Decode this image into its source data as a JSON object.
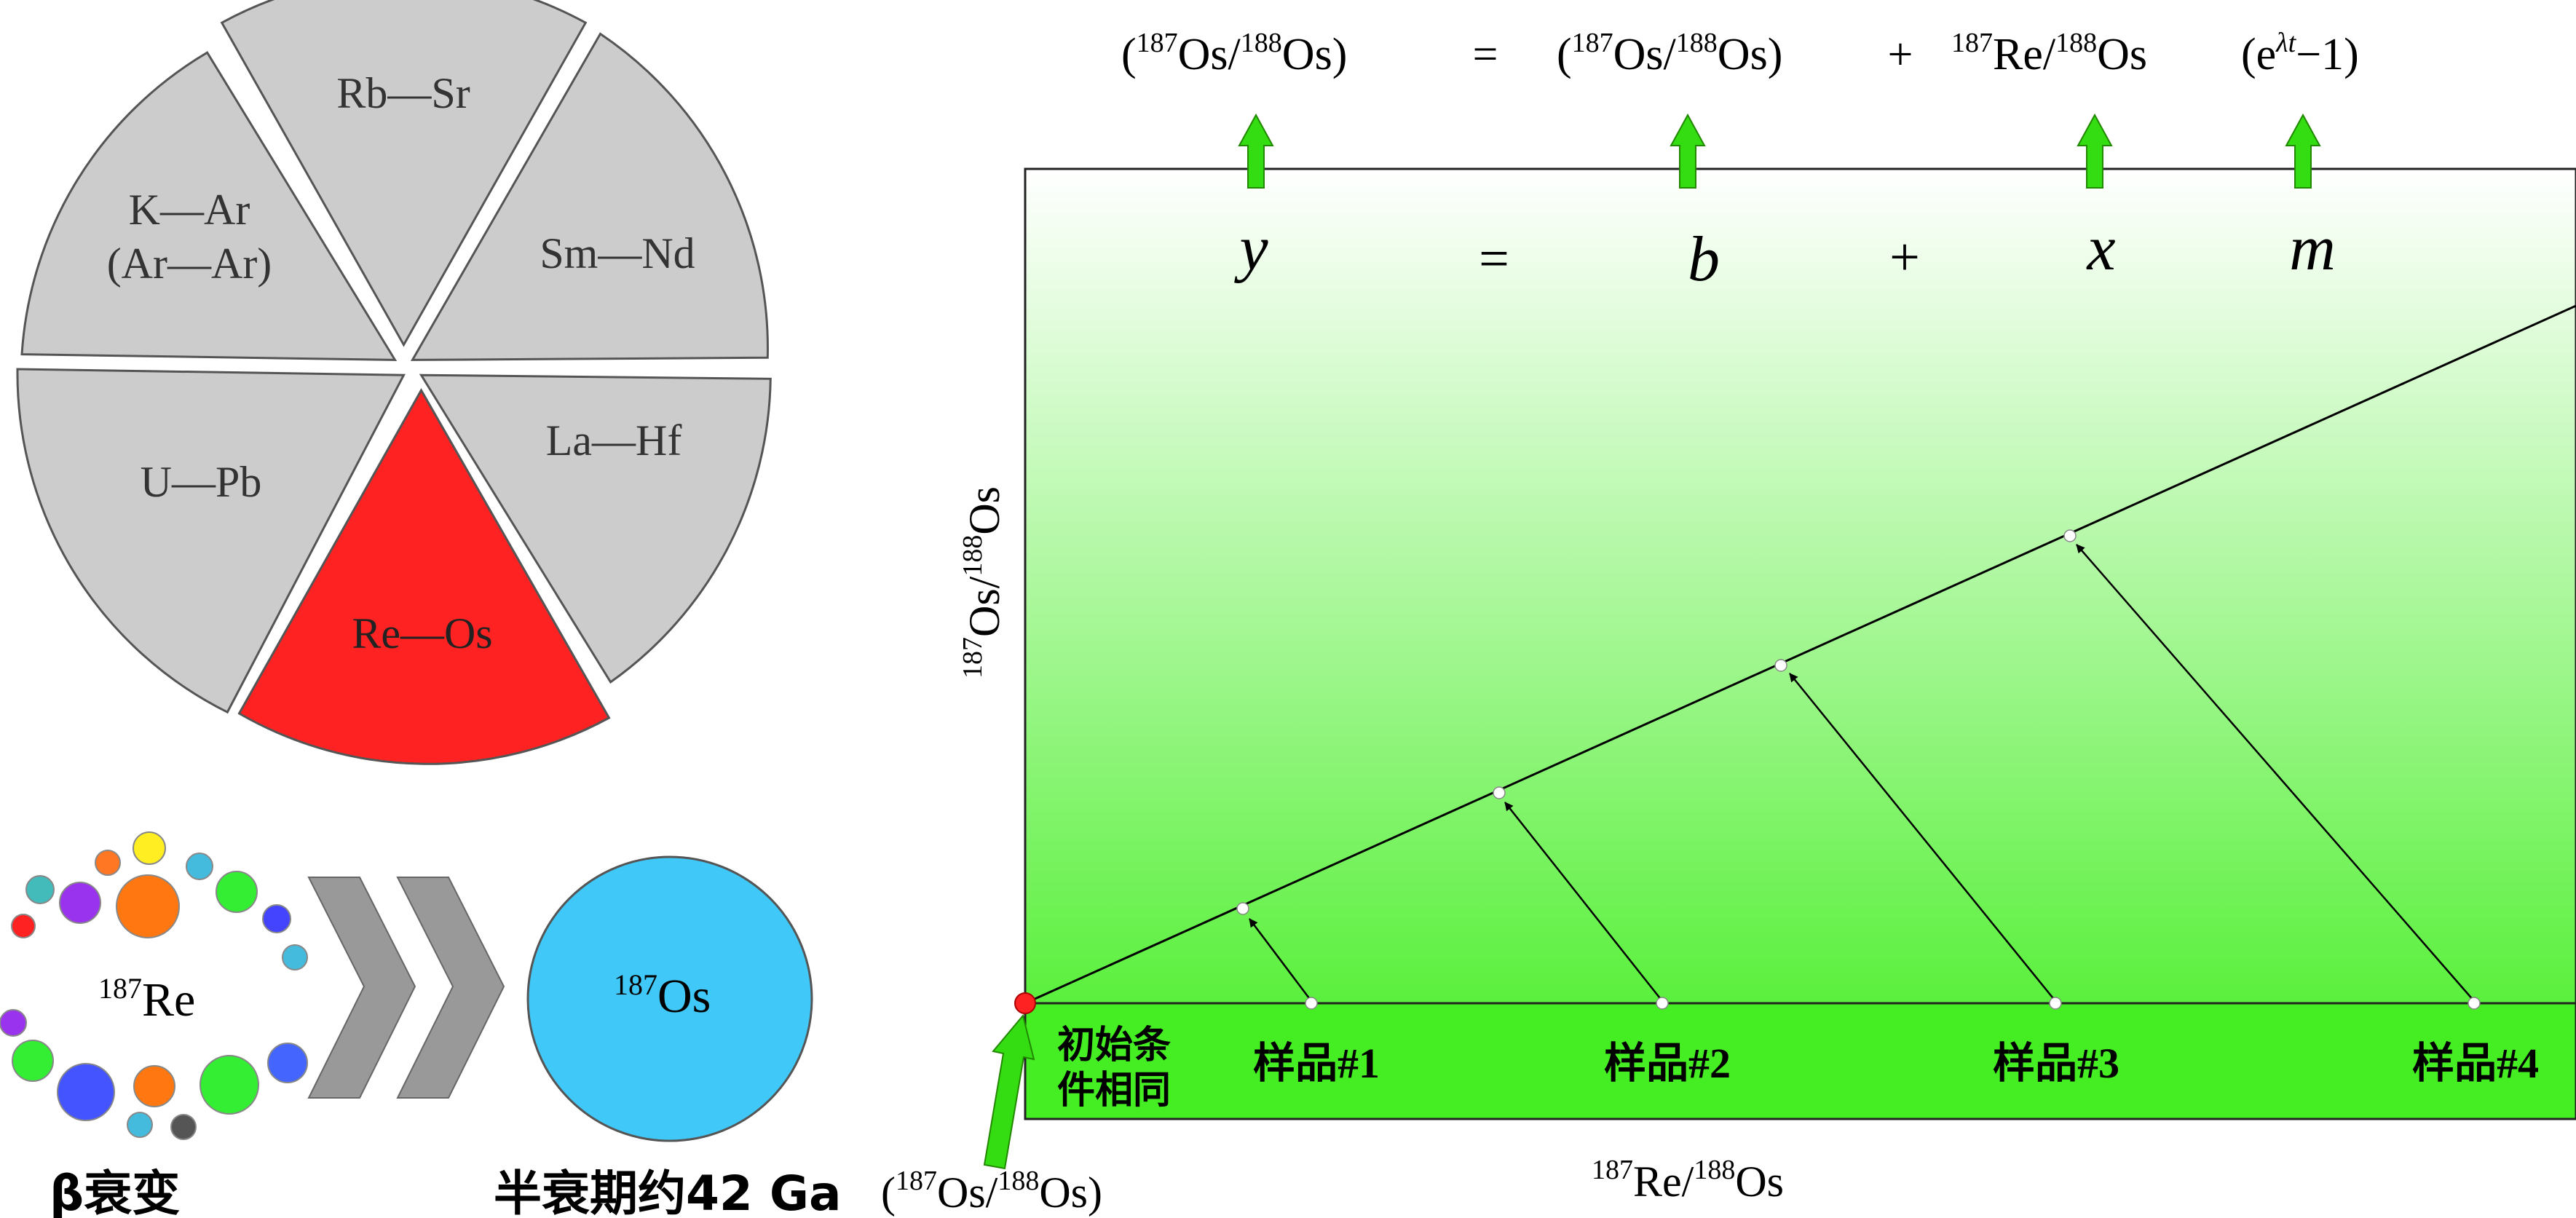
{
  "pie": {
    "segments": [
      {
        "label": "Rb—Sr",
        "highlighted": false
      },
      {
        "label": "Sm—Nd",
        "highlighted": false
      },
      {
        "label": "La—Hf",
        "highlighted": false
      },
      {
        "label": "Re—Os",
        "highlighted": true
      },
      {
        "label": "U—Pb",
        "highlighted": false
      },
      {
        "label": "K—Ar",
        "label_line2": "(Ar—Ar)",
        "highlighted": false
      }
    ],
    "colors": {
      "segment": "#cccccc",
      "highlight": "#ff2222",
      "outline": "#555555"
    }
  },
  "decay": {
    "parent_mass": "187",
    "parent_symbol": "Re",
    "daughter_mass": "187",
    "daughter_symbol": "Os",
    "process_label": "β衰变",
    "half_life_label": "半衰期约42 Ga",
    "colors": {
      "daughter": "#40c8f8",
      "chevron": "#999999"
    }
  },
  "equation": {
    "top": {
      "lhs": {
        "open": "(",
        "m1": "187",
        "s1": "Os/",
        "m2": "188",
        "s2": "Os)"
      },
      "eq": "=",
      "term_b": {
        "open": "(",
        "m1": "187",
        "s1": "Os/",
        "m2": "188",
        "s2": "Os)"
      },
      "plus": "+",
      "term_x": {
        "m1": "187",
        "s1": "Re/",
        "m2": "188",
        "s2": "Os"
      },
      "term_m": {
        "open": "(e",
        "sup": "λt",
        "rest": "−1)"
      }
    },
    "bottom": {
      "y": "y",
      "eq": "=",
      "b": "b",
      "plus": "+",
      "x": "x",
      "m": "m"
    }
  },
  "isochron": {
    "y_axis": {
      "m1": "187",
      "s1": "Os/",
      "m2": "188",
      "s2": "Os"
    },
    "x_axis": {
      "m1": "187",
      "s1": "Re/",
      "m2": "188",
      "s2": "Os"
    },
    "initial_label_line1": "初始条",
    "initial_label_line2": "件相同",
    "intercept_label": {
      "open": "(",
      "m1": "187",
      "s1": "Os/",
      "m2": "188",
      "s2": "Os)"
    },
    "samples": [
      "样品#1",
      "样品#2",
      "样品#3",
      "样品#4"
    ],
    "colors": {
      "gradient_top": "#ffffff",
      "gradient_bottom": "#44ee22",
      "band": "#44ee22",
      "arrow": "#33dd11",
      "intercept_point": "#ff2222"
    }
  }
}
